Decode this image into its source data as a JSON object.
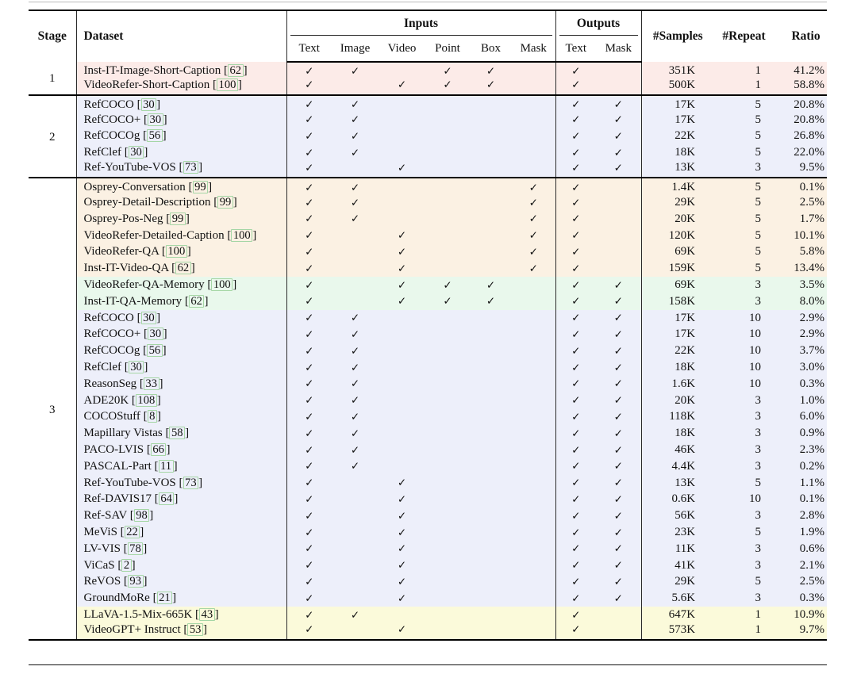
{
  "table": {
    "check_glyph": "✓",
    "colors": {
      "pink": "#fcebe8",
      "lavender": "#edeffa",
      "orange": "#fbf1e3",
      "green": "#e9f8ec",
      "yellow": "#fbfada"
    },
    "header": {
      "stage": "Stage",
      "dataset": "Dataset",
      "inputs_group": "Inputs",
      "outputs_group": "Outputs",
      "input_cols": [
        "Text",
        "Image",
        "Video",
        "Point",
        "Box",
        "Mask"
      ],
      "output_cols": [
        "Text",
        "Mask"
      ],
      "samples": "#Samples",
      "repeat": "#Repeat",
      "ratio": "Ratio"
    },
    "stages": [
      {
        "label": "1",
        "groups": [
          {
            "color": "pink",
            "rows": [
              {
                "name": "Inst-IT-Image-Short-Caption",
                "cite": "62",
                "in": [
                  1,
                  1,
                  0,
                  1,
                  1,
                  0
                ],
                "out": [
                  1,
                  0
                ],
                "samples": "351K",
                "repeat": "1",
                "ratio": "41.2%"
              },
              {
                "name": "VideoRefer-Short-Caption",
                "cite": "100",
                "in": [
                  1,
                  0,
                  1,
                  1,
                  1,
                  0
                ],
                "out": [
                  1,
                  0
                ],
                "samples": "500K",
                "repeat": "1",
                "ratio": "58.8%"
              }
            ]
          }
        ]
      },
      {
        "label": "2",
        "groups": [
          {
            "color": "lavender",
            "rows": [
              {
                "name": "RefCOCO",
                "cite": "30",
                "in": [
                  1,
                  1,
                  0,
                  0,
                  0,
                  0
                ],
                "out": [
                  1,
                  1
                ],
                "samples": "17K",
                "repeat": "5",
                "ratio": "20.8%"
              },
              {
                "name": "RefCOCO+",
                "cite": "30",
                "in": [
                  1,
                  1,
                  0,
                  0,
                  0,
                  0
                ],
                "out": [
                  1,
                  1
                ],
                "samples": "17K",
                "repeat": "5",
                "ratio": "20.8%"
              },
              {
                "name": "RefCOCOg",
                "cite": "56",
                "in": [
                  1,
                  1,
                  0,
                  0,
                  0,
                  0
                ],
                "out": [
                  1,
                  1
                ],
                "samples": "22K",
                "repeat": "5",
                "ratio": "26.8%"
              },
              {
                "name": "RefClef",
                "cite": "30",
                "in": [
                  1,
                  1,
                  0,
                  0,
                  0,
                  0
                ],
                "out": [
                  1,
                  1
                ],
                "samples": "18K",
                "repeat": "5",
                "ratio": "22.0%"
              },
              {
                "name": "Ref-YouTube-VOS",
                "cite": "73",
                "in": [
                  1,
                  0,
                  1,
                  0,
                  0,
                  0
                ],
                "out": [
                  1,
                  1
                ],
                "samples": "13K",
                "repeat": "3",
                "ratio": "9.5%"
              }
            ]
          }
        ]
      },
      {
        "label": "3",
        "groups": [
          {
            "color": "orange",
            "rows": [
              {
                "name": "Osprey-Conversation",
                "cite": "99",
                "in": [
                  1,
                  1,
                  0,
                  0,
                  0,
                  1
                ],
                "out": [
                  1,
                  0
                ],
                "samples": "1.4K",
                "repeat": "5",
                "ratio": "0.1%"
              },
              {
                "name": "Osprey-Detail-Description",
                "cite": "99",
                "in": [
                  1,
                  1,
                  0,
                  0,
                  0,
                  1
                ],
                "out": [
                  1,
                  0
                ],
                "samples": "29K",
                "repeat": "5",
                "ratio": "2.5%"
              },
              {
                "name": "Osprey-Pos-Neg",
                "cite": "99",
                "in": [
                  1,
                  1,
                  0,
                  0,
                  0,
                  1
                ],
                "out": [
                  1,
                  0
                ],
                "samples": "20K",
                "repeat": "5",
                "ratio": "1.7%"
              },
              {
                "name": "VideoRefer-Detailed-Caption",
                "cite": "100",
                "in": [
                  1,
                  0,
                  1,
                  0,
                  0,
                  1
                ],
                "out": [
                  1,
                  0
                ],
                "samples": "120K",
                "repeat": "5",
                "ratio": "10.1%"
              },
              {
                "name": "VideoRefer-QA",
                "cite": "100",
                "in": [
                  1,
                  0,
                  1,
                  0,
                  0,
                  1
                ],
                "out": [
                  1,
                  0
                ],
                "samples": "69K",
                "repeat": "5",
                "ratio": "5.8%"
              },
              {
                "name": "Inst-IT-Video-QA",
                "cite": "62",
                "in": [
                  1,
                  0,
                  1,
                  0,
                  0,
                  1
                ],
                "out": [
                  1,
                  0
                ],
                "samples": "159K",
                "repeat": "5",
                "ratio": "13.4%"
              }
            ]
          },
          {
            "color": "green",
            "rows": [
              {
                "name": "VideoRefer-QA-Memory",
                "cite": "100",
                "in": [
                  1,
                  0,
                  1,
                  1,
                  1,
                  0
                ],
                "out": [
                  1,
                  1
                ],
                "samples": "69K",
                "repeat": "3",
                "ratio": "3.5%"
              },
              {
                "name": "Inst-IT-QA-Memory",
                "cite": "62",
                "in": [
                  1,
                  0,
                  1,
                  1,
                  1,
                  0
                ],
                "out": [
                  1,
                  1
                ],
                "samples": "158K",
                "repeat": "3",
                "ratio": "8.0%"
              }
            ]
          },
          {
            "color": "lavender",
            "rows": [
              {
                "name": "RefCOCO",
                "cite": "30",
                "in": [
                  1,
                  1,
                  0,
                  0,
                  0,
                  0
                ],
                "out": [
                  1,
                  1
                ],
                "samples": "17K",
                "repeat": "10",
                "ratio": "2.9%"
              },
              {
                "name": "RefCOCO+",
                "cite": "30",
                "in": [
                  1,
                  1,
                  0,
                  0,
                  0,
                  0
                ],
                "out": [
                  1,
                  1
                ],
                "samples": "17K",
                "repeat": "10",
                "ratio": "2.9%"
              },
              {
                "name": "RefCOCOg",
                "cite": "56",
                "in": [
                  1,
                  1,
                  0,
                  0,
                  0,
                  0
                ],
                "out": [
                  1,
                  1
                ],
                "samples": "22K",
                "repeat": "10",
                "ratio": "3.7%"
              },
              {
                "name": "RefClef",
                "cite": "30",
                "in": [
                  1,
                  1,
                  0,
                  0,
                  0,
                  0
                ],
                "out": [
                  1,
                  1
                ],
                "samples": "18K",
                "repeat": "10",
                "ratio": "3.0%"
              },
              {
                "name": "ReasonSeg",
                "cite": "33",
                "in": [
                  1,
                  1,
                  0,
                  0,
                  0,
                  0
                ],
                "out": [
                  1,
                  1
                ],
                "samples": "1.6K",
                "repeat": "10",
                "ratio": "0.3%"
              },
              {
                "name": "ADE20K",
                "cite": "108",
                "in": [
                  1,
                  1,
                  0,
                  0,
                  0,
                  0
                ],
                "out": [
                  1,
                  1
                ],
                "samples": "20K",
                "repeat": "3",
                "ratio": "1.0%"
              },
              {
                "name": "COCOStuff",
                "cite": "8",
                "in": [
                  1,
                  1,
                  0,
                  0,
                  0,
                  0
                ],
                "out": [
                  1,
                  1
                ],
                "samples": "118K",
                "repeat": "3",
                "ratio": "6.0%"
              },
              {
                "name": "Mapillary Vistas",
                "cite": "58",
                "in": [
                  1,
                  1,
                  0,
                  0,
                  0,
                  0
                ],
                "out": [
                  1,
                  1
                ],
                "samples": "18K",
                "repeat": "3",
                "ratio": "0.9%"
              },
              {
                "name": "PACO-LVIS",
                "cite": "66",
                "in": [
                  1,
                  1,
                  0,
                  0,
                  0,
                  0
                ],
                "out": [
                  1,
                  1
                ],
                "samples": "46K",
                "repeat": "3",
                "ratio": "2.3%"
              },
              {
                "name": "PASCAL-Part",
                "cite": "11",
                "in": [
                  1,
                  1,
                  0,
                  0,
                  0,
                  0
                ],
                "out": [
                  1,
                  1
                ],
                "samples": "4.4K",
                "repeat": "3",
                "ratio": "0.2%"
              },
              {
                "name": "Ref-YouTube-VOS",
                "cite": "73",
                "in": [
                  1,
                  0,
                  1,
                  0,
                  0,
                  0
                ],
                "out": [
                  1,
                  1
                ],
                "samples": "13K",
                "repeat": "5",
                "ratio": "1.1%"
              },
              {
                "name": "Ref-DAVIS17",
                "cite": "64",
                "in": [
                  1,
                  0,
                  1,
                  0,
                  0,
                  0
                ],
                "out": [
                  1,
                  1
                ],
                "samples": "0.6K",
                "repeat": "10",
                "ratio": "0.1%"
              },
              {
                "name": "Ref-SAV",
                "cite": "98",
                "in": [
                  1,
                  0,
                  1,
                  0,
                  0,
                  0
                ],
                "out": [
                  1,
                  1
                ],
                "samples": "56K",
                "repeat": "3",
                "ratio": "2.8%"
              },
              {
                "name": "MeViS",
                "cite": "22",
                "in": [
                  1,
                  0,
                  1,
                  0,
                  0,
                  0
                ],
                "out": [
                  1,
                  1
                ],
                "samples": "23K",
                "repeat": "5",
                "ratio": "1.9%"
              },
              {
                "name": "LV-VIS",
                "cite": "78",
                "in": [
                  1,
                  0,
                  1,
                  0,
                  0,
                  0
                ],
                "out": [
                  1,
                  1
                ],
                "samples": "11K",
                "repeat": "3",
                "ratio": "0.6%"
              },
              {
                "name": "ViCaS",
                "cite": "2",
                "in": [
                  1,
                  0,
                  1,
                  0,
                  0,
                  0
                ],
                "out": [
                  1,
                  1
                ],
                "samples": "41K",
                "repeat": "3",
                "ratio": "2.1%"
              },
              {
                "name": "ReVOS",
                "cite": "93",
                "in": [
                  1,
                  0,
                  1,
                  0,
                  0,
                  0
                ],
                "out": [
                  1,
                  1
                ],
                "samples": "29K",
                "repeat": "5",
                "ratio": "2.5%"
              },
              {
                "name": "GroundMoRe",
                "cite": "21",
                "in": [
                  1,
                  0,
                  1,
                  0,
                  0,
                  0
                ],
                "out": [
                  1,
                  1
                ],
                "samples": "5.6K",
                "repeat": "3",
                "ratio": "0.3%"
              }
            ]
          },
          {
            "color": "yellow",
            "rows": [
              {
                "name": "LLaVA-1.5-Mix-665K",
                "cite": "43",
                "in": [
                  1,
                  1,
                  0,
                  0,
                  0,
                  0
                ],
                "out": [
                  1,
                  0
                ],
                "samples": "647K",
                "repeat": "1",
                "ratio": "10.9%"
              },
              {
                "name": "VideoGPT+ Instruct",
                "cite": "53",
                "in": [
                  1,
                  0,
                  1,
                  0,
                  0,
                  0
                ],
                "out": [
                  1,
                  0
                ],
                "samples": "573K",
                "repeat": "1",
                "ratio": "9.7%"
              }
            ]
          }
        ]
      }
    ]
  }
}
